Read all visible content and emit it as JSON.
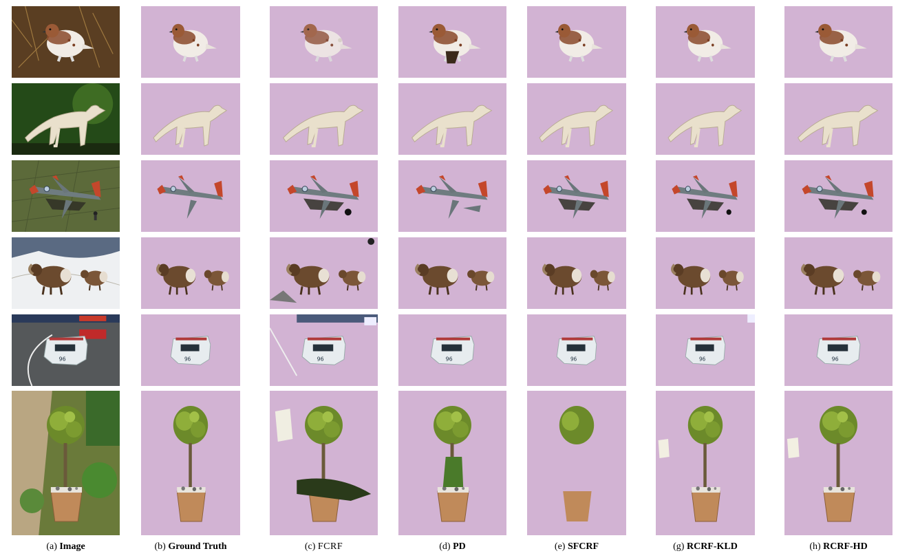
{
  "figure": {
    "row_subjects": [
      "ptarmigan",
      "dog",
      "airplane",
      "sheep",
      "race-car",
      "potted-tree"
    ],
    "background_color": "#d2b3d3",
    "columns": [
      {
        "id": "a",
        "label": "(a)",
        "method": "Image"
      },
      {
        "id": "b",
        "label": "(b)",
        "method": "Ground Truth"
      },
      {
        "id": "c",
        "label": "(c)",
        "method": "FCRF"
      },
      {
        "id": "d",
        "label": "(d)",
        "method": "PD"
      },
      {
        "id": "e",
        "label": "(e)",
        "method": "SFCRF"
      },
      {
        "id": "g",
        "label": "(g)",
        "method": "RCRF-KLD"
      },
      {
        "id": "h",
        "label": "(h)",
        "method": "RCRF-HD"
      }
    ]
  }
}
